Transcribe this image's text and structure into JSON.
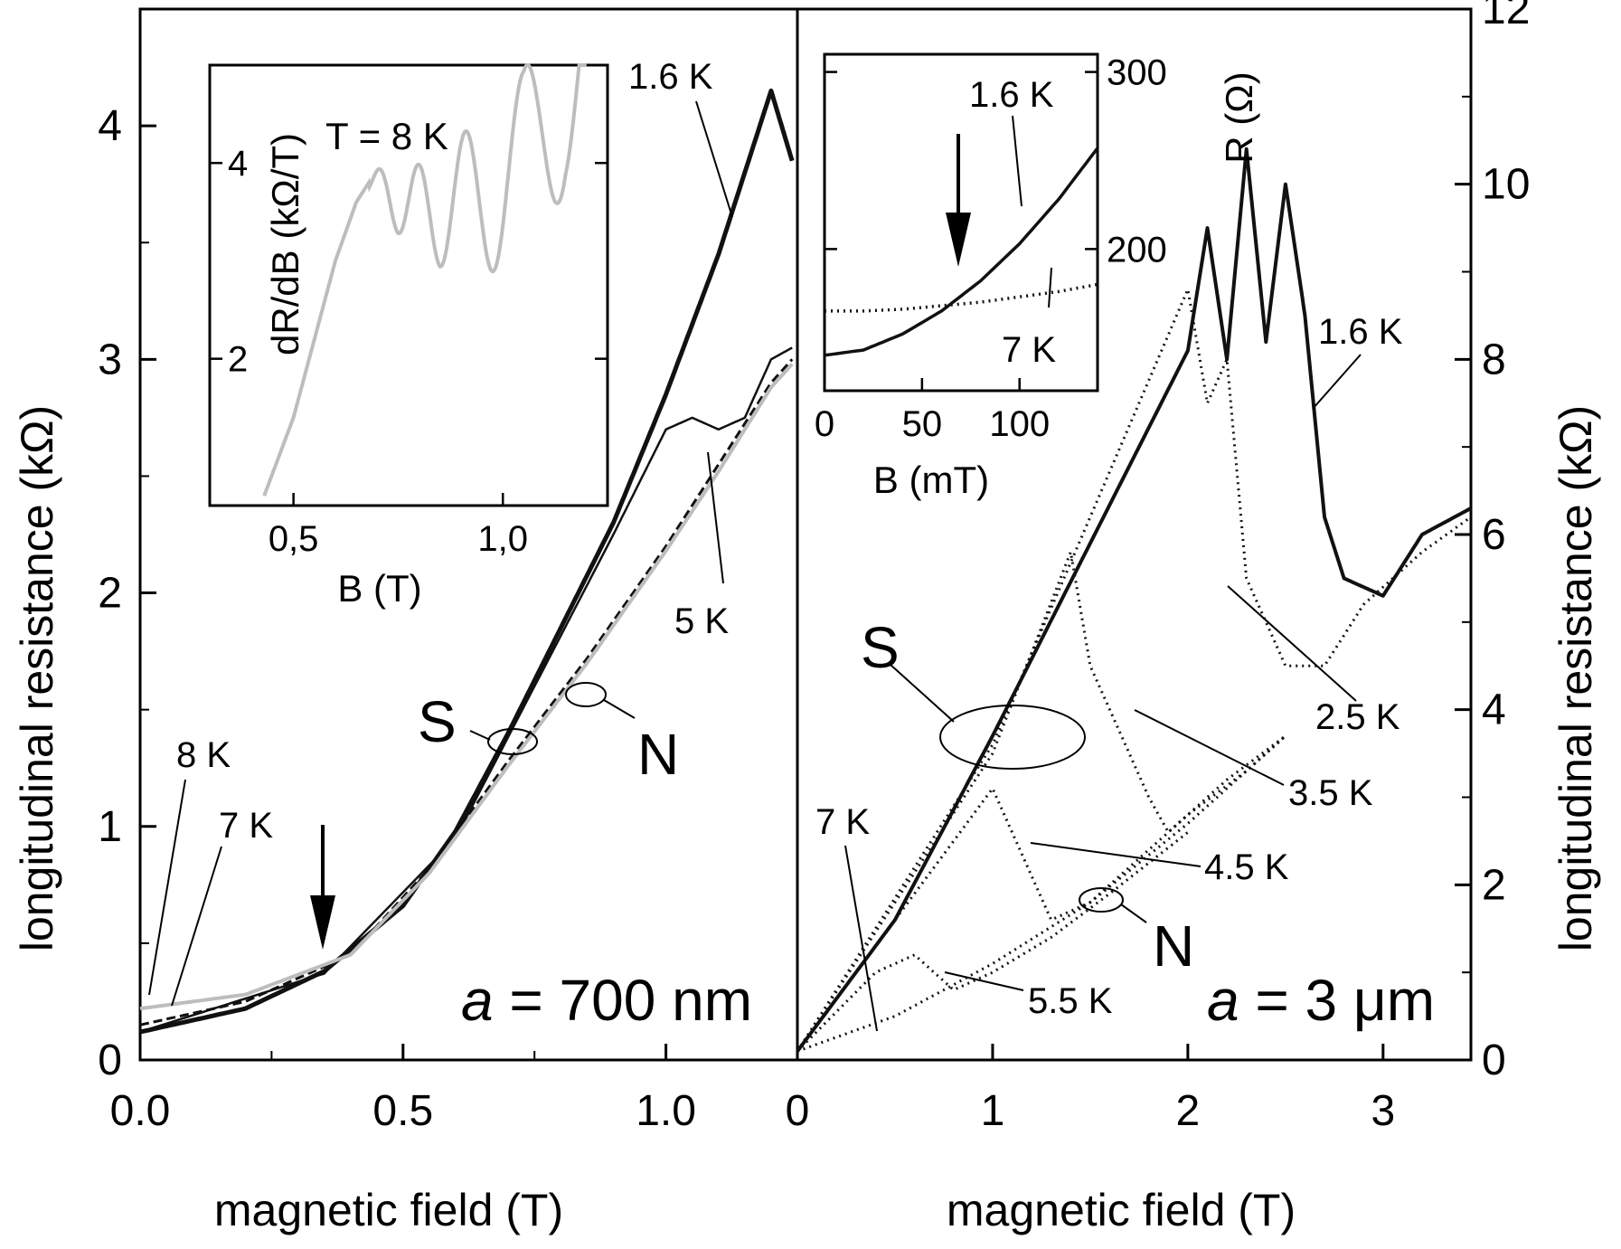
{
  "chart_data": [
    {
      "type": "line",
      "panel": "left",
      "xlabel": "magnetic field (T)",
      "ylabel": "longitudinal resistance (kΩ)",
      "xlim": [
        0,
        1.25
      ],
      "ylim": [
        0,
        4.5
      ],
      "x_ticks": [
        "0.0",
        "0.5",
        "1.0"
      ],
      "y_ticks": [
        "0",
        "1",
        "2",
        "3",
        "4"
      ],
      "sample_label_prefix": "a",
      "sample_label_value": " = 700 nm",
      "region_labels": [
        "S",
        "N"
      ],
      "series": [
        {
          "name": "1.6 K",
          "style": "thick-solid",
          "x": [
            0,
            0.2,
            0.35,
            0.5,
            0.6,
            0.7,
            0.8,
            0.9,
            1.0,
            1.1,
            1.2,
            1.24
          ],
          "y": [
            0.12,
            0.22,
            0.38,
            0.66,
            0.98,
            1.4,
            1.85,
            2.3,
            2.85,
            3.45,
            4.15,
            3.85
          ]
        },
        {
          "name": "5 K",
          "style": "thin-solid",
          "x": [
            0,
            0.35,
            0.6,
            0.9,
            1.0,
            1.05,
            1.1,
            1.15,
            1.2,
            1.24
          ],
          "y": [
            0.12,
            0.37,
            0.95,
            2.25,
            2.7,
            2.75,
            2.7,
            2.75,
            3.0,
            3.05
          ]
        },
        {
          "name": "7 K",
          "style": "dashed",
          "x": [
            0,
            0.2,
            0.4,
            0.55,
            0.7,
            0.85,
            1.0,
            1.1,
            1.2,
            1.24
          ],
          "y": [
            0.15,
            0.25,
            0.45,
            0.82,
            1.28,
            1.72,
            2.2,
            2.55,
            2.9,
            3.0
          ]
        },
        {
          "name": "8 K",
          "style": "gray",
          "x": [
            0,
            0.2,
            0.4,
            0.55,
            0.7,
            0.85,
            1.0,
            1.1,
            1.2,
            1.24
          ],
          "y": [
            0.22,
            0.28,
            0.45,
            0.8,
            1.26,
            1.7,
            2.18,
            2.52,
            2.88,
            2.98
          ]
        }
      ],
      "annotations": [
        "1.6 K",
        "5 K",
        "8 K",
        "7 K"
      ],
      "inset": {
        "xlabel": "B (T)",
        "ylabel": "dR/dB (kΩ/T)",
        "x_ticks": [
          "0,5",
          "1,0"
        ],
        "y_ticks": [
          "2",
          "4"
        ],
        "label": "T = 8 K",
        "xlim": [
          0.3,
          1.25
        ],
        "ylim": [
          0.5,
          5.0
        ],
        "series": [
          {
            "name": "8 K",
            "x": [
              0.43,
              0.5,
              0.55,
              0.6,
              0.65,
              0.68,
              0.75,
              0.85,
              0.95,
              1.05,
              1.1,
              1.15,
              1.2
            ],
            "y": [
              0.6,
              1.4,
              2.2,
              3.0,
              3.6,
              3.8,
              3.6,
              3.5,
              3.7,
              3.9,
              4.5,
              5.0,
              5.0
            ]
          }
        ]
      }
    },
    {
      "type": "line",
      "panel": "right",
      "xlabel": "magnetic field (T)",
      "ylabel": "longitudinal resistance (kΩ)",
      "xlim": [
        0,
        3.45
      ],
      "ylim": [
        0,
        12
      ],
      "x_ticks": [
        "0",
        "1",
        "2",
        "3"
      ],
      "y_ticks": [
        "0",
        "2",
        "4",
        "6",
        "8",
        "10",
        "12"
      ],
      "sample_label_prefix": "a",
      "sample_label_value": " = 3 μm",
      "region_labels": [
        "S",
        "N"
      ],
      "series": [
        {
          "name": "1.6 K",
          "style": "solid",
          "x": [
            0,
            0.5,
            1.0,
            1.5,
            2.0,
            2.1,
            2.2,
            2.3,
            2.4,
            2.5,
            2.6,
            2.7,
            2.8,
            3.0,
            3.2,
            3.45
          ],
          "y": [
            0.1,
            1.6,
            3.7,
            5.9,
            8.1,
            9.5,
            8.0,
            10.4,
            8.2,
            10.0,
            8.5,
            6.2,
            5.5,
            5.3,
            6.0,
            6.3
          ]
        },
        {
          "name": "2.5 K",
          "style": "dotted",
          "x": [
            0,
            1.0,
            2.0,
            2.1,
            2.2,
            2.3,
            2.5,
            2.7,
            2.9,
            3.2,
            3.45
          ],
          "y": [
            0.1,
            3.6,
            8.8,
            7.5,
            8.0,
            5.5,
            4.5,
            4.5,
            5.2,
            5.8,
            6.2
          ]
        },
        {
          "name": "3.5 K",
          "style": "dotted",
          "x": [
            0,
            1.0,
            1.4,
            1.5,
            1.7,
            1.8,
            1.9,
            2.0,
            2.2,
            2.5
          ],
          "y": [
            0.1,
            3.5,
            5.8,
            4.5,
            3.5,
            3.0,
            2.6,
            2.8,
            3.2,
            3.7
          ]
        },
        {
          "name": "4.5 K",
          "style": "dotted",
          "x": [
            0,
            0.8,
            1.0,
            1.1,
            1.3,
            1.5,
            1.7,
            2.0,
            2.3,
            2.5
          ],
          "y": [
            0.1,
            2.5,
            3.1,
            2.6,
            1.6,
            1.8,
            2.2,
            2.8,
            3.3,
            3.7
          ]
        },
        {
          "name": "5.5 K",
          "style": "dotted",
          "x": [
            0,
            0.4,
            0.6,
            0.8,
            1.0,
            1.3,
            1.6,
            2.0
          ],
          "y": [
            0.1,
            1.0,
            1.2,
            0.8,
            1.0,
            1.4,
            1.9,
            2.6
          ]
        },
        {
          "name": "7 K",
          "style": "dotted",
          "x": [
            0,
            0.5,
            1.0,
            1.5,
            2.0,
            2.5
          ],
          "y": [
            0.1,
            0.5,
            1.1,
            1.8,
            2.7,
            3.7
          ]
        }
      ],
      "annotations": [
        "1.6 K",
        "2.5 K",
        "3.5 K",
        "4.5 K",
        "5.5 K",
        "7 K"
      ],
      "inset": {
        "xlabel": "B (mT)",
        "ylabel": "R (Ω)",
        "x_ticks": [
          "0",
          "50",
          "100"
        ],
        "y_ticks": [
          "200",
          "300"
        ],
        "xlim": [
          0,
          140
        ],
        "ylim": [
          120,
          310
        ],
        "series": [
          {
            "name": "1.6 K",
            "x": [
              0,
              20,
              40,
              60,
              80,
              100,
              120,
              140
            ],
            "y": [
              140,
              143,
              152,
              165,
              182,
              203,
              228,
              257
            ]
          },
          {
            "name": "7 K",
            "x": [
              0,
              20,
              40,
              60,
              80,
              100,
              120,
              140
            ],
            "y": [
              165,
              165,
              166,
              168,
              170,
              173,
              176,
              180
            ]
          }
        ]
      }
    }
  ]
}
